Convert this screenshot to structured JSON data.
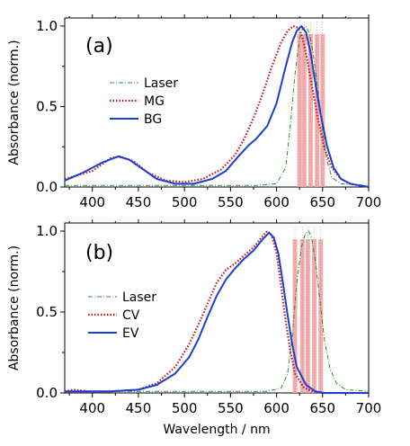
{
  "chart_data": [
    {
      "type": "line",
      "panel_label": "(a)",
      "ylabel": "Absorbance (norm.)",
      "xlabel": "",
      "xlim": [
        370,
        700
      ],
      "ylim": [
        0,
        1.05
      ],
      "x_ticks": [
        400,
        450,
        500,
        550,
        600,
        650,
        700
      ],
      "y_ticks": [
        0.0,
        0.5,
        1.0
      ],
      "y_tick_labels": [
        "0.0",
        "0.5",
        "1.0"
      ],
      "legend_position": "center-left",
      "series": [
        {
          "name": "Laser",
          "color": "#2e8b3e",
          "style": "dash-dot",
          "x": [
            370,
            580,
            600,
            610,
            615,
            620,
            625,
            628,
            632,
            636,
            640,
            645,
            650,
            655,
            660,
            670,
            700
          ],
          "y": [
            0.01,
            0.01,
            0.02,
            0.12,
            0.38,
            0.7,
            0.92,
            0.98,
            1.0,
            0.95,
            0.82,
            0.6,
            0.35,
            0.16,
            0.06,
            0.02,
            0.01
          ]
        },
        {
          "name": "MG",
          "color": "#cc1111",
          "style": "dotted",
          "x": [
            370,
            400,
            420,
            430,
            445,
            460,
            480,
            500,
            520,
            540,
            555,
            565,
            575,
            585,
            595,
            605,
            612,
            618,
            623,
            628,
            633,
            638,
            645,
            652,
            660,
            670,
            680,
            690,
            700
          ],
          "y": [
            0.05,
            0.1,
            0.18,
            0.19,
            0.16,
            0.09,
            0.04,
            0.03,
            0.05,
            0.11,
            0.2,
            0.3,
            0.43,
            0.58,
            0.75,
            0.9,
            0.97,
            1.0,
            0.99,
            0.93,
            0.8,
            0.64,
            0.42,
            0.24,
            0.12,
            0.05,
            0.02,
            0.01,
            0.0
          ]
        },
        {
          "name": "BG",
          "color": "#1a3fd6",
          "style": "solid",
          "x": [
            370,
            390,
            410,
            428,
            440,
            455,
            470,
            490,
            510,
            530,
            545,
            560,
            570,
            578,
            590,
            600,
            610,
            617,
            622,
            627,
            632,
            637,
            642,
            648,
            655,
            662,
            670,
            680,
            690,
            700
          ],
          "y": [
            0.04,
            0.09,
            0.15,
            0.19,
            0.17,
            0.11,
            0.05,
            0.02,
            0.02,
            0.05,
            0.1,
            0.2,
            0.26,
            0.3,
            0.38,
            0.52,
            0.75,
            0.9,
            0.97,
            1.0,
            0.96,
            0.83,
            0.65,
            0.45,
            0.25,
            0.12,
            0.05,
            0.02,
            0.01,
            0.0
          ]
        }
      ],
      "laser_lines": [
        625,
        630,
        637,
        644,
        650
      ]
    },
    {
      "type": "line",
      "panel_label": "(b)",
      "ylabel": "Absorbance (norm.)",
      "xlabel": "Wavelength / nm",
      "xlim": [
        370,
        700
      ],
      "ylim": [
        0,
        1.05
      ],
      "x_ticks": [
        400,
        450,
        500,
        550,
        600,
        650,
        700
      ],
      "y_ticks": [
        0.0,
        0.5,
        1.0
      ],
      "y_tick_labels": [
        "0.0",
        "0.5",
        "1.0"
      ],
      "legend_position": "center-left",
      "series": [
        {
          "name": "Laser",
          "color": "#2e8b3e",
          "style": "dash-dot",
          "x": [
            370,
            590,
            605,
            612,
            617,
            622,
            627,
            631,
            635,
            638,
            642,
            647,
            652,
            658,
            665,
            675,
            700
          ],
          "y": [
            0.01,
            0.01,
            0.03,
            0.12,
            0.35,
            0.68,
            0.9,
            0.98,
            1.0,
            0.96,
            0.82,
            0.58,
            0.33,
            0.15,
            0.06,
            0.02,
            0.01
          ]
        },
        {
          "name": "CV",
          "color": "#cc1111",
          "style": "dotted",
          "x": [
            370,
            380,
            395,
            420,
            450,
            470,
            490,
            505,
            515,
            525,
            535,
            545,
            555,
            565,
            575,
            585,
            590,
            595,
            600,
            605,
            610,
            615,
            620,
            630,
            640,
            650,
            700
          ],
          "y": [
            0.01,
            0.02,
            0.01,
            0.01,
            0.02,
            0.06,
            0.16,
            0.3,
            0.42,
            0.55,
            0.68,
            0.76,
            0.8,
            0.85,
            0.9,
            0.97,
            1.0,
            0.97,
            0.86,
            0.66,
            0.44,
            0.26,
            0.12,
            0.03,
            0.01,
            0.0,
            0.0
          ]
        },
        {
          "name": "EV",
          "color": "#1a3fd6",
          "style": "solid",
          "x": [
            370,
            420,
            450,
            470,
            490,
            505,
            515,
            525,
            535,
            545,
            555,
            565,
            575,
            585,
            592,
            597,
            602,
            607,
            612,
            617,
            622,
            632,
            642,
            652,
            700
          ],
          "y": [
            0.01,
            0.01,
            0.02,
            0.05,
            0.12,
            0.22,
            0.33,
            0.47,
            0.6,
            0.7,
            0.77,
            0.83,
            0.88,
            0.95,
            0.99,
            0.96,
            0.86,
            0.68,
            0.48,
            0.3,
            0.16,
            0.05,
            0.01,
            0.0,
            0.0
          ]
        }
      ],
      "laser_lines": [
        620,
        628,
        634,
        641,
        648
      ]
    }
  ]
}
